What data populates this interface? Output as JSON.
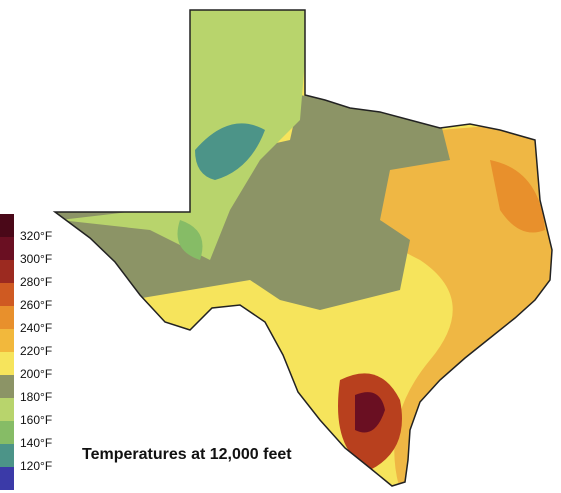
{
  "title": "Temperatures at 12,000 feet",
  "legend": {
    "items": [
      {
        "label": "320°F",
        "color": "#6a0f22"
      },
      {
        "label": "300°F",
        "color": "#9c2a20"
      },
      {
        "label": "280°F",
        "color": "#cf5a22"
      },
      {
        "label": "260°F",
        "color": "#e8902c"
      },
      {
        "label": "240°F",
        "color": "#f2b83c"
      },
      {
        "label": "220°F",
        "color": "#f6e45c"
      },
      {
        "label": "200°F",
        "color": "#8c9466"
      },
      {
        "label": "180°F",
        "color": "#b8d46c"
      },
      {
        "label": "160°F",
        "color": "#86bc66"
      },
      {
        "label": "140°F",
        "color": "#4c9488"
      },
      {
        "label": "120°F",
        "color": "#3b3aa8"
      }
    ]
  }
}
